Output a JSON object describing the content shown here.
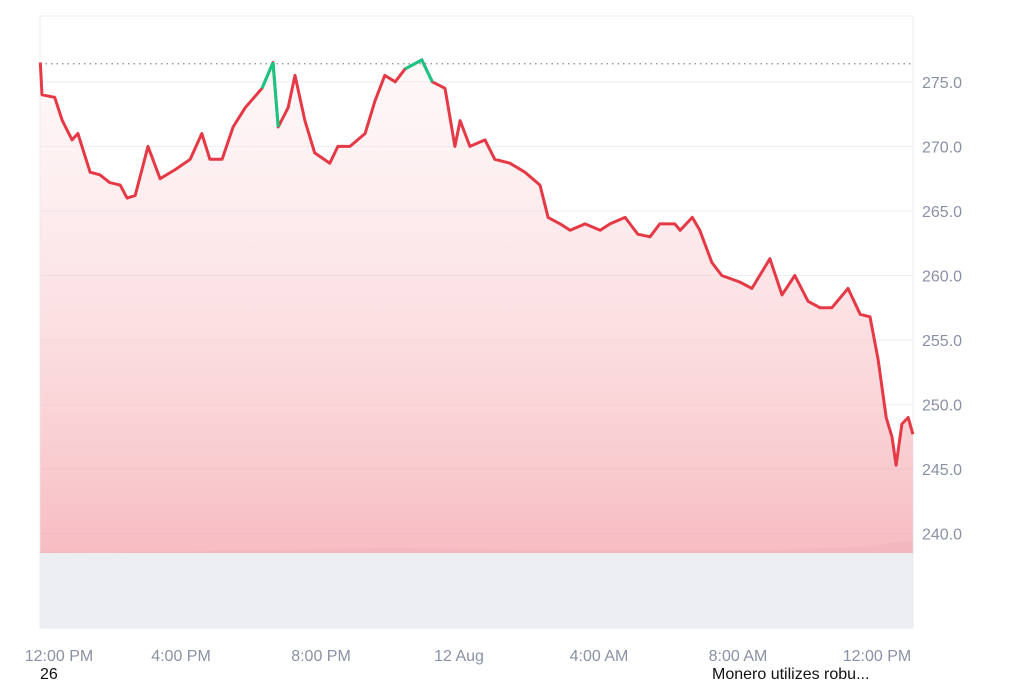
{
  "chart_data": {
    "type": "line",
    "title": "",
    "xlabel": "",
    "ylabel": "",
    "ylim": [
      232.7,
      280.1
    ],
    "y_ticks": [
      "240.0",
      "245.0",
      "250.0",
      "255.0",
      "260.0",
      "265.0",
      "270.0",
      "275.0"
    ],
    "x_ticks": [
      "12:00 PM",
      "4:00 PM",
      "8:00 PM",
      "12 Aug",
      "4:00 AM",
      "8:00 AM",
      "12:00 PM"
    ],
    "reference_value": 276.4,
    "grid": true,
    "colors": {
      "down": "#e63946",
      "up": "#16c784",
      "fill": "#f4a6ad",
      "volume": "#e9ebf0",
      "grid": "#eceef2"
    },
    "series": [
      {
        "x": [
          "11 Aug 11:57",
          "11 Aug 12:00",
          "11 Aug 12:22",
          "11 Aug 12:35",
          "11 Aug 12:52",
          "11 Aug 13:02",
          "11 Aug 13:23",
          "11 Aug 13:40",
          "11 Aug 13:57",
          "11 Aug 14:15",
          "11 Aug 14:27",
          "11 Aug 14:41",
          "11 Aug 15:03",
          "11 Aug 15:24",
          "11 Aug 15:50",
          "11 Aug 16:16",
          "11 Aug 16:36",
          "11 Aug 16:50",
          "11 Aug 17:11",
          "11 Aug 17:30",
          "11 Aug 17:51",
          "11 Aug 18:20",
          "11 Aug 18:39",
          "11 Aug 18:48",
          "11 Aug 19:05",
          "11 Aug 19:17",
          "11 Aug 19:34",
          "11 Aug 19:51",
          "11 Aug 20:17",
          "11 Aug 20:31",
          "11 Aug 20:52",
          "11 Aug 21:18",
          "11 Aug 21:35",
          "11 Aug 21:52",
          "11 Aug 22:10",
          "11 Aug 22:27",
          "11 Aug 22:56",
          "11 Aug 23:14",
          "11 Aug 23:36",
          "11 Aug 23:53",
          "12 Aug 00:02",
          "12 Aug 00:19",
          "12 Aug 00:45",
          "12 Aug 01:02",
          "12 Aug 01:28",
          "12 Aug 01:54",
          "12 Aug 02:20",
          "12 Aug 02:34",
          "12 Aug 02:55",
          "12 Aug 03:12",
          "12 Aug 03:38",
          "12 Aug 04:04",
          "12 Aug 04:21",
          "12 Aug 04:47",
          "12 Aug 05:09",
          "12 Aug 05:30",
          "12 Aug 05:47",
          "12 Aug 06:13",
          "12 Aug 06:22",
          "12 Aug 06:43",
          "12 Aug 06:56",
          "12 Aug 07:17",
          "12 Aug 07:34",
          "12 Aug 08:05",
          "12 Aug 08:26",
          "12 Aug 08:57",
          "12 Aug 09:18",
          "12 Aug 09:40",
          "12 Aug 10:03",
          "12 Aug 10:24",
          "12 Aug 10:44",
          "12 Aug 11:12",
          "12 Aug 11:33",
          "12 Aug 11:50",
          "12 Aug 12:04",
          "12 Aug 12:18",
          "12 Aug 12:28",
          "12 Aug 12:35",
          "12 Aug 12:45",
          "12 Aug 12:56",
          "12 Aug 13:04"
        ],
        "values": [
          276.5,
          274,
          273.8,
          272,
          270.5,
          271,
          268,
          267.8,
          267.2,
          267,
          266,
          266.2,
          270,
          267.5,
          268.2,
          269,
          271,
          269,
          269,
          271.5,
          273,
          274.5,
          276.5,
          271.5,
          273,
          275.5,
          272,
          269.5,
          268.7,
          270,
          270,
          271,
          273.5,
          275.5,
          275,
          276,
          276.7,
          275,
          274.5,
          270,
          272,
          270,
          270.5,
          269,
          268.7,
          268,
          267,
          264.5,
          264,
          263.5,
          264,
          263.5,
          264,
          264.5,
          263.2,
          263,
          264,
          264,
          263.5,
          264.5,
          263.5,
          261,
          260,
          259.5,
          259,
          261.3,
          258.5,
          260,
          258,
          257.5,
          257.5,
          259,
          257,
          256.8,
          253.5,
          249,
          247.5,
          245.3,
          248.5,
          249,
          247.7
        ]
      }
    ]
  },
  "footer": {
    "left_text": "26",
    "right_text": "Monero utilizes robu..."
  }
}
